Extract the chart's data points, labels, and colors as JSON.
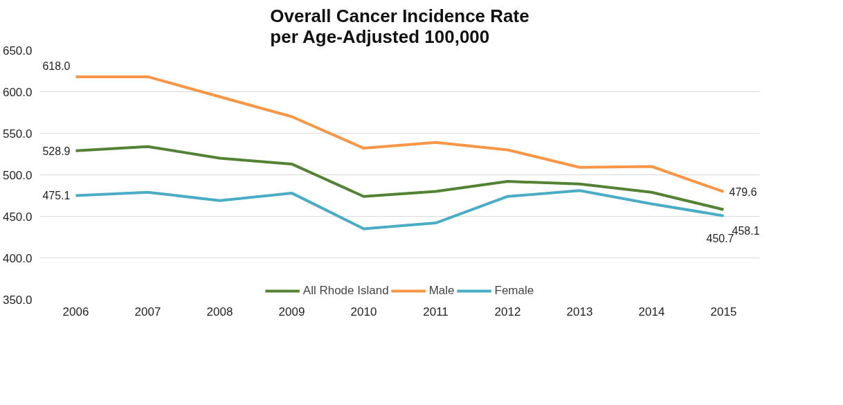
{
  "chart_data": {
    "type": "line",
    "title": "Overall Cancer Incidence Rate\nper Age-Adjusted 100,000",
    "categories": [
      "2006",
      "2007",
      "2008",
      "2009",
      "2010",
      "2011",
      "2012",
      "2013",
      "2014",
      "2015"
    ],
    "series": [
      {
        "name": "All Rhode Island",
        "color": "#548235",
        "values": [
          528.9,
          534,
          520,
          513,
          474,
          480,
          492,
          489,
          479,
          458.1
        ],
        "value_labels": [
          "528.9",
          null,
          null,
          null,
          null,
          null,
          null,
          null,
          null,
          "458.1"
        ]
      },
      {
        "name": "Male",
        "color": "#f79646",
        "values": [
          618.0,
          618,
          594,
          570,
          532,
          539,
          530,
          509,
          510,
          479.6
        ],
        "value_labels": [
          "618.0",
          null,
          null,
          null,
          null,
          null,
          null,
          null,
          null,
          "479.6"
        ]
      },
      {
        "name": "Female",
        "color": "#4bacc6",
        "values": [
          475.1,
          479,
          469,
          478,
          435,
          442,
          474,
          481,
          465,
          450.7
        ],
        "value_labels": [
          "475.1",
          null,
          null,
          null,
          null,
          null,
          null,
          null,
          null,
          "450.7"
        ]
      }
    ],
    "ylim": [
      350,
      650
    ],
    "yticks": [
      {
        "value": 350,
        "label": "350.0"
      },
      {
        "value": 400,
        "label": "400.0"
      },
      {
        "value": 450,
        "label": "450.0"
      },
      {
        "value": 500,
        "label": "500.0"
      },
      {
        "value": 550,
        "label": "550.0"
      },
      {
        "value": 600,
        "label": "600.0"
      },
      {
        "value": 650,
        "label": "650.0"
      }
    ],
    "grid": "y",
    "legend": "bottom",
    "marker": "none",
    "line_style": "solid"
  }
}
